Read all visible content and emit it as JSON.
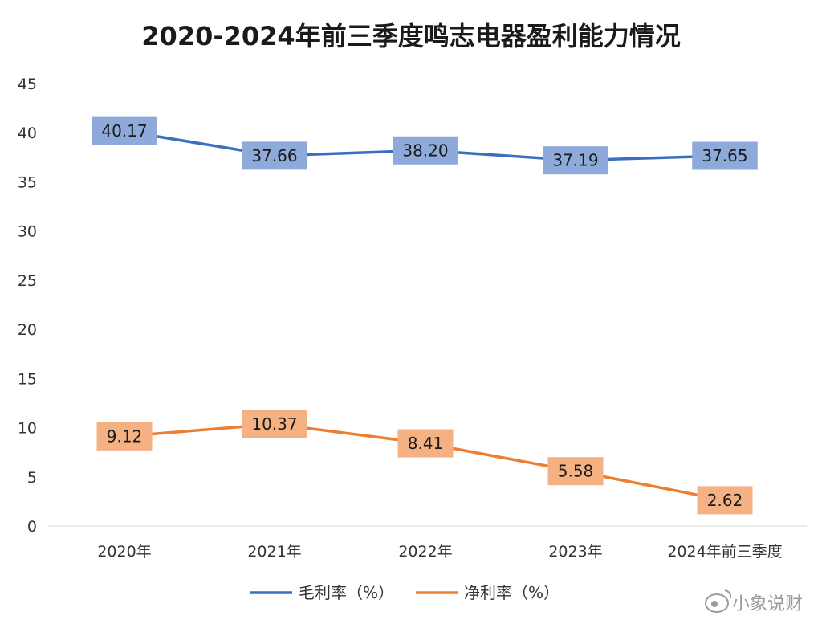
{
  "chart_data": {
    "type": "line",
    "title": "2020-2024年前三季度鸣志电器盈利能力情况",
    "categories": [
      "2020年",
      "2021年",
      "2022年",
      "2023年",
      "2024年前三季度"
    ],
    "series": [
      {
        "name": "毛利率（%）",
        "values": [
          40.17,
          37.66,
          38.2,
          37.19,
          37.65
        ],
        "color": "#3a6fbf",
        "label_fill": "#8eaadb",
        "labels": [
          "40.17",
          "37.66",
          "38.20",
          "37.19",
          "37.65"
        ]
      },
      {
        "name": "净利率（%）",
        "values": [
          9.12,
          10.37,
          8.41,
          5.58,
          2.62
        ],
        "color": "#ed7d31",
        "label_fill": "#f4b183",
        "labels": [
          "9.12",
          "10.37",
          "8.41",
          "5.58",
          "2.62"
        ]
      }
    ],
    "ylim": [
      0,
      45
    ],
    "yticks": [
      "0",
      "5",
      "10",
      "15",
      "20",
      "25",
      "30",
      "35",
      "40",
      "45"
    ],
    "grid": false,
    "legend": "bottom"
  },
  "watermark": {
    "text": "小象说财",
    "icon": "weibo-icon"
  }
}
